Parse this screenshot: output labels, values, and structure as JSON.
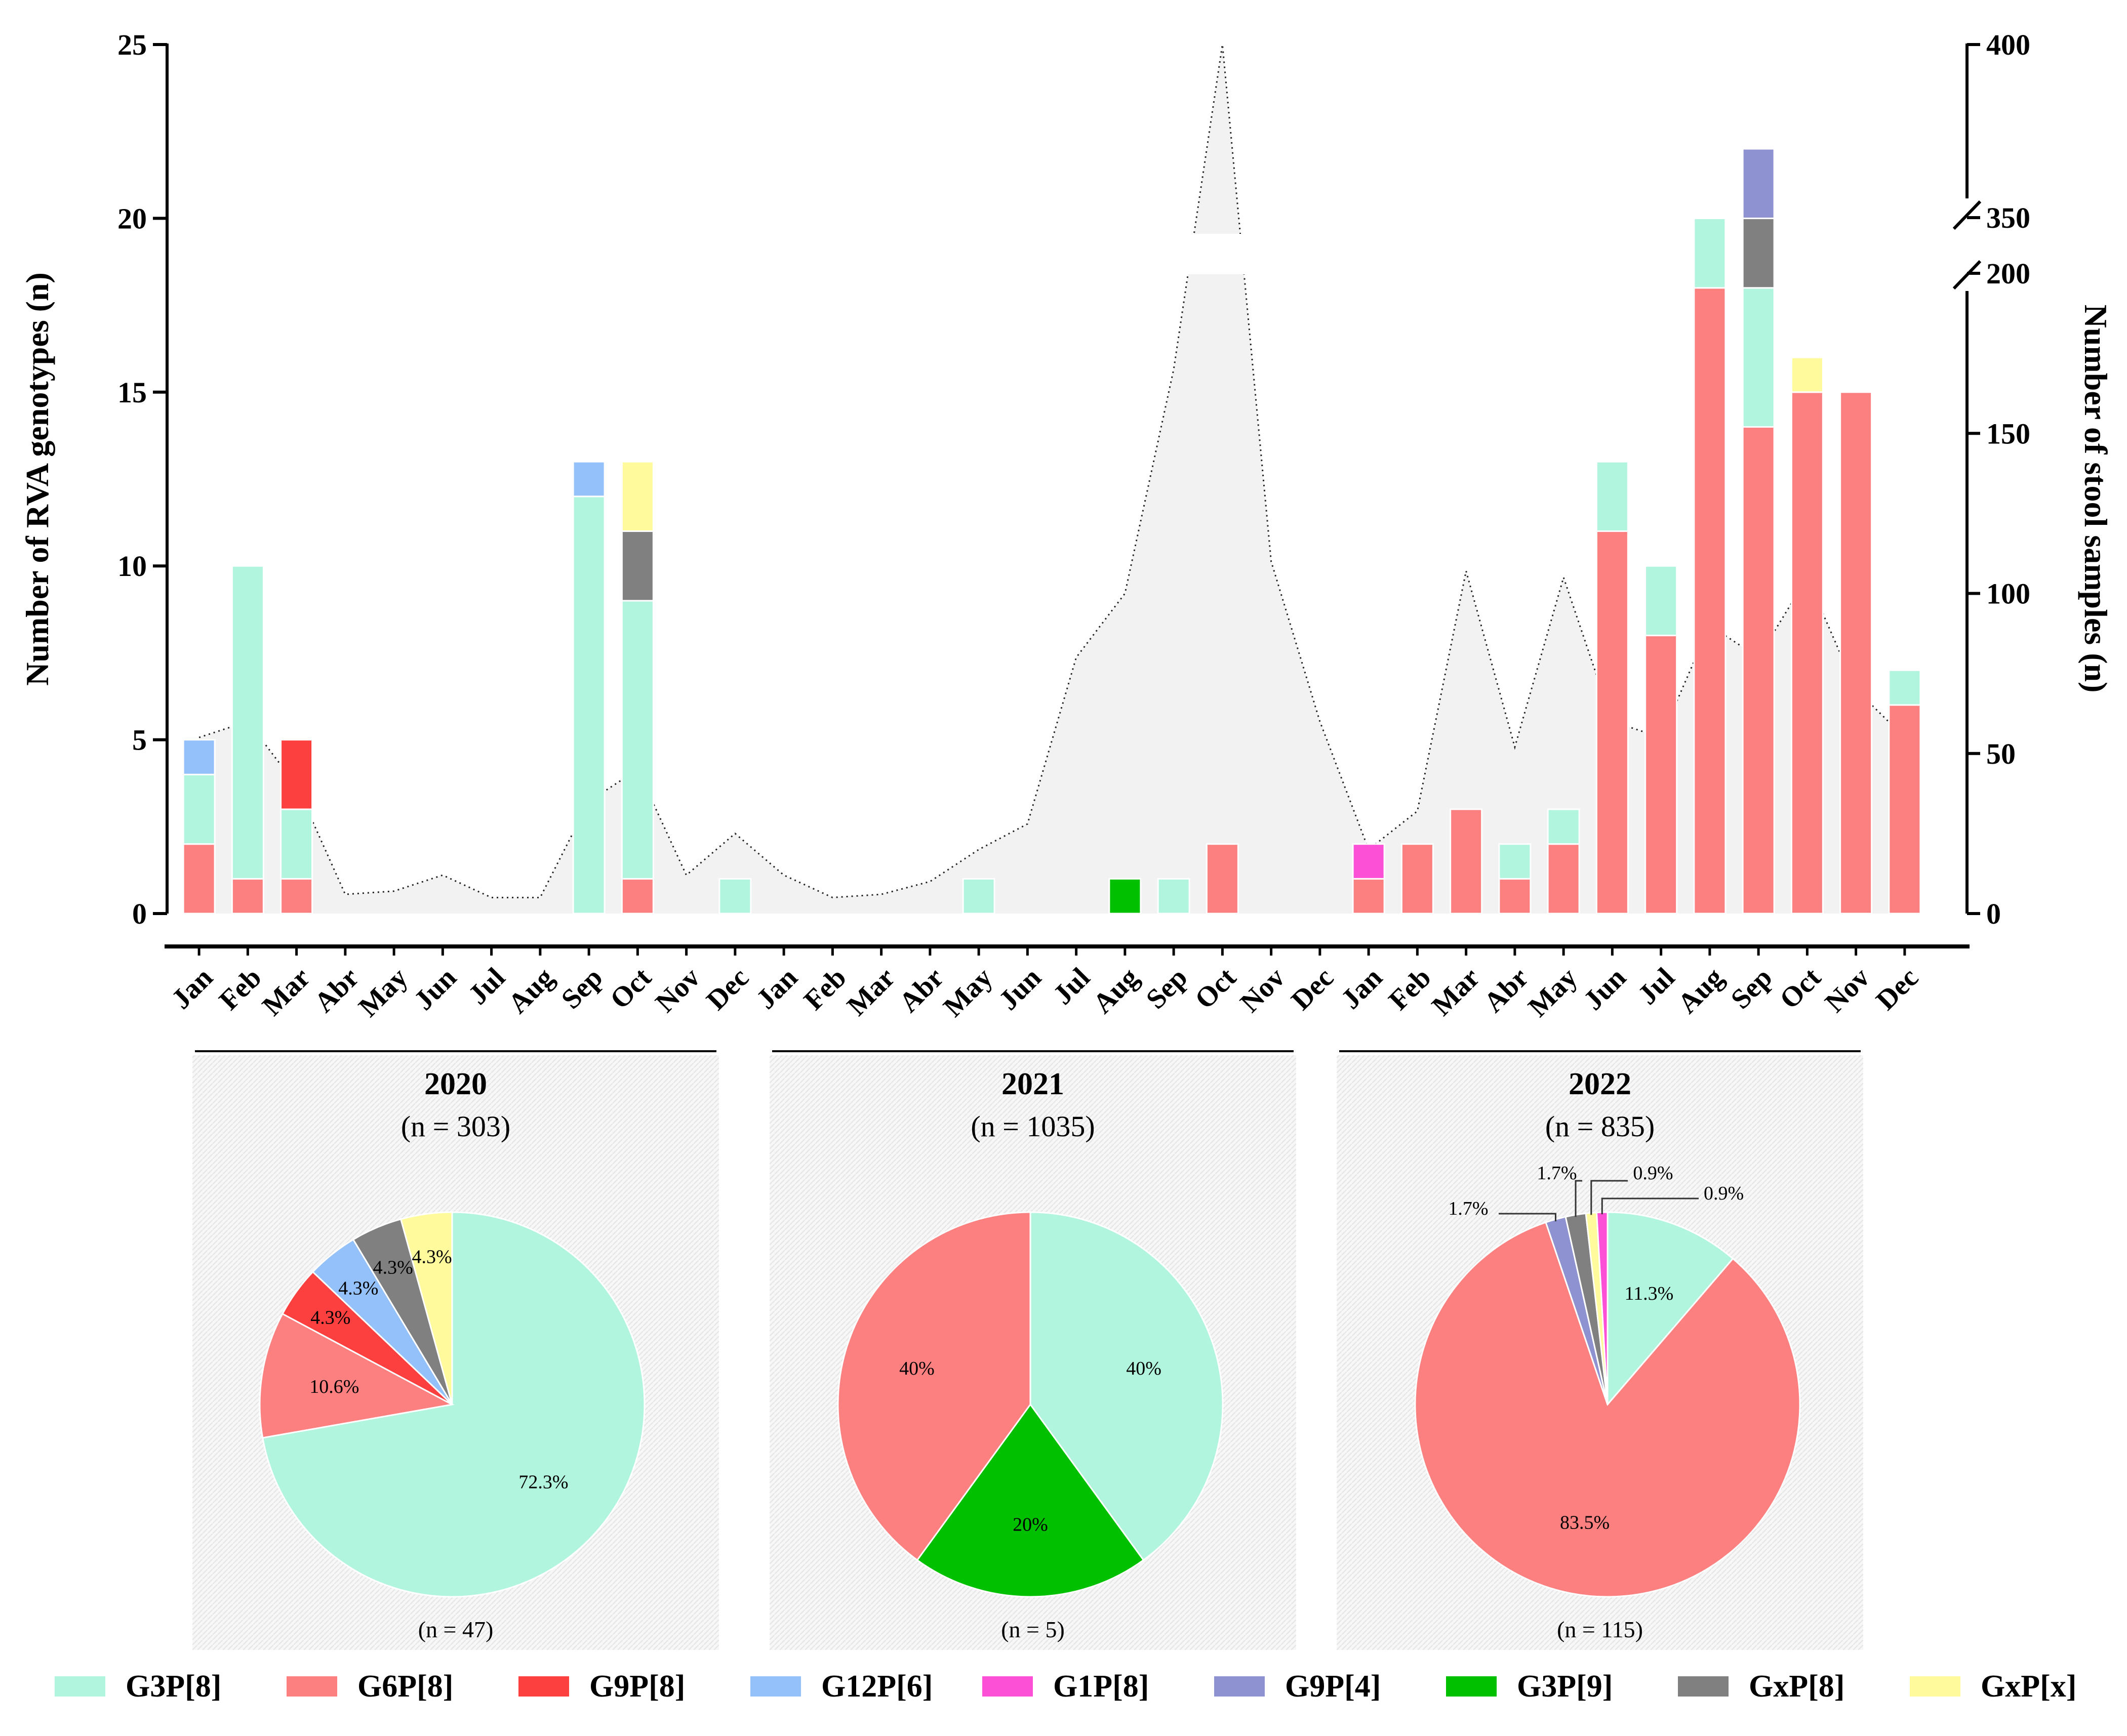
{
  "colors": {
    "G3P[8]": "#b2f5df",
    "G6P[8]": "#fd8080",
    "G9P[8]": "#fc3f3f",
    "G12P[6]": "#94c1f9",
    "G1P[8]": "#fc50d6",
    "G9P[4]": "#8f92d0",
    "G3P[9]": "#00c000",
    "GxP[8]": "#808080",
    "GxP[x]": "#fffb9c",
    "area": "#f2f2f2",
    "axis": "#000000",
    "panel": "#f2f2f2"
  },
  "chart_data": [
    {
      "type": "bar",
      "stacked": true,
      "ylabel": "Number of RVA genotypes (n)",
      "y2label": "Number of stool samples (n)",
      "ylim": [
        0,
        25
      ],
      "yticks": [
        0,
        5,
        10,
        15,
        20,
        25
      ],
      "y2_segment_low": [
        0,
        200
      ],
      "y2_segment_high": [
        350,
        400
      ],
      "y2ticks": [
        0,
        50,
        100,
        150,
        200,
        350,
        400
      ],
      "categories": [
        "Jan",
        "Feb",
        "Mar",
        "Abr",
        "May",
        "Jun",
        "Jul",
        "Aug",
        "Sep",
        "Oct",
        "Nov",
        "Dec",
        "Jan",
        "Feb",
        "Mar",
        "Abr",
        "May",
        "Jun",
        "Jul",
        "Aug",
        "Sep",
        "Oct",
        "Nov",
        "Dec",
        "Jan",
        "Feb",
        "Mar",
        "Abr",
        "May",
        "Jun",
        "Jul",
        "Aug",
        "Sep",
        "Oct",
        "Nov",
        "Dec"
      ],
      "series": [
        {
          "name": "G6P[8]",
          "values": [
            2,
            1,
            1,
            0,
            0,
            0,
            0,
            0,
            0,
            1,
            0,
            0,
            0,
            0,
            0,
            0,
            0,
            0,
            0,
            0,
            0,
            2,
            0,
            0,
            1,
            2,
            3,
            1,
            2,
            11,
            8,
            18,
            14,
            15,
            15,
            6
          ]
        },
        {
          "name": "G3P[8]",
          "values": [
            2,
            9,
            2,
            0,
            0,
            0,
            0,
            0,
            12,
            8,
            0,
            1,
            0,
            0,
            0,
            0,
            1,
            0,
            0,
            0,
            1,
            0,
            0,
            0,
            0,
            0,
            0,
            1,
            1,
            2,
            2,
            2,
            4,
            0,
            0,
            1
          ]
        },
        {
          "name": "G9P[8]",
          "values": [
            0,
            0,
            2,
            0,
            0,
            0,
            0,
            0,
            0,
            0,
            0,
            0,
            0,
            0,
            0,
            0,
            0,
            0,
            0,
            0,
            0,
            0,
            0,
            0,
            0,
            0,
            0,
            0,
            0,
            0,
            0,
            0,
            0,
            0,
            0,
            0
          ]
        },
        {
          "name": "G12P[6]",
          "values": [
            1,
            0,
            0,
            0,
            0,
            0,
            0,
            0,
            1,
            0,
            0,
            0,
            0,
            0,
            0,
            0,
            0,
            0,
            0,
            0,
            0,
            0,
            0,
            0,
            0,
            0,
            0,
            0,
            0,
            0,
            0,
            0,
            0,
            0,
            0,
            0
          ]
        },
        {
          "name": "G1P[8]",
          "values": [
            0,
            0,
            0,
            0,
            0,
            0,
            0,
            0,
            0,
            0,
            0,
            0,
            0,
            0,
            0,
            0,
            0,
            0,
            0,
            0,
            0,
            0,
            0,
            0,
            1,
            0,
            0,
            0,
            0,
            0,
            0,
            0,
            0,
            0,
            0,
            0
          ]
        },
        {
          "name": "G3P[9]",
          "values": [
            0,
            0,
            0,
            0,
            0,
            0,
            0,
            0,
            0,
            0,
            0,
            0,
            0,
            0,
            0,
            0,
            0,
            0,
            0,
            1,
            0,
            0,
            0,
            0,
            0,
            0,
            0,
            0,
            0,
            0,
            0,
            0,
            0,
            0,
            0,
            0
          ]
        },
        {
          "name": "GxP[8]",
          "values": [
            0,
            0,
            0,
            0,
            0,
            0,
            0,
            0,
            0,
            2,
            0,
            0,
            0,
            0,
            0,
            0,
            0,
            0,
            0,
            0,
            0,
            0,
            0,
            0,
            0,
            0,
            0,
            0,
            0,
            0,
            0,
            0,
            2,
            0,
            0,
            0
          ]
        },
        {
          "name": "G9P[4]",
          "values": [
            0,
            0,
            0,
            0,
            0,
            0,
            0,
            0,
            0,
            0,
            0,
            0,
            0,
            0,
            0,
            0,
            0,
            0,
            0,
            0,
            0,
            0,
            0,
            0,
            0,
            0,
            0,
            0,
            0,
            0,
            0,
            0,
            2,
            0,
            0,
            0
          ]
        },
        {
          "name": "GxP[x]",
          "values": [
            0,
            0,
            0,
            0,
            0,
            0,
            0,
            0,
            0,
            2,
            0,
            0,
            0,
            0,
            0,
            0,
            0,
            0,
            0,
            0,
            0,
            0,
            0,
            0,
            0,
            0,
            0,
            0,
            0,
            0,
            0,
            0,
            0,
            1,
            0,
            0
          ]
        }
      ],
      "stool_samples": [
        55,
        60,
        40,
        6,
        7,
        12,
        5,
        5,
        35,
        45,
        12,
        25,
        12,
        5,
        6,
        10,
        20,
        28,
        80,
        100,
        170,
        400,
        110,
        60,
        20,
        32,
        107,
        52,
        105,
        60,
        55,
        90,
        80,
        105,
        70,
        55
      ]
    },
    {
      "type": "pie",
      "title": "2020",
      "subtitle": "(n = 303)",
      "total_label": "(n = 47)",
      "slices": [
        {
          "name": "G3P[8]",
          "value": 72.3,
          "label": "72.3%"
        },
        {
          "name": "G6P[8]",
          "value": 10.6,
          "label": "10.6%"
        },
        {
          "name": "G9P[8]",
          "value": 4.3,
          "label": "4.3%"
        },
        {
          "name": "G12P[6]",
          "value": 4.3,
          "label": "4.3%"
        },
        {
          "name": "GxP[8]",
          "value": 4.3,
          "label": "4.3%"
        },
        {
          "name": "GxP[x]",
          "value": 4.3,
          "label": "4.3%"
        }
      ]
    },
    {
      "type": "pie",
      "title": "2021",
      "subtitle": "(n = 1035)",
      "total_label": "(n = 5)",
      "slices": [
        {
          "name": "G3P[8]",
          "value": 40,
          "label": "40%"
        },
        {
          "name": "G3P[9]",
          "value": 20,
          "label": "20%"
        },
        {
          "name": "G6P[8]",
          "value": 40,
          "label": "40%"
        }
      ]
    },
    {
      "type": "pie",
      "title": "2022",
      "subtitle": "(n = 835)",
      "total_label": "(n = 115)",
      "slices": [
        {
          "name": "G3P[8]",
          "value": 11.3,
          "label": "11.3%"
        },
        {
          "name": "G6P[8]",
          "value": 83.5,
          "label": "83.5%"
        },
        {
          "name": "G9P[4]",
          "value": 1.7,
          "label": "1.7%"
        },
        {
          "name": "GxP[8]",
          "value": 1.7,
          "label": "1.7%"
        },
        {
          "name": "GxP[x]",
          "value": 0.9,
          "label": "0.9%"
        },
        {
          "name": "G1P[8]",
          "value": 0.9,
          "label": "0.9%"
        }
      ]
    }
  ],
  "legend": [
    "G3P[8]",
    "G6P[8]",
    "G9P[8]",
    "G12P[6]",
    "G1P[8]",
    "G9P[4]",
    "G3P[9]",
    "GxP[8]",
    "GxP[x]"
  ]
}
